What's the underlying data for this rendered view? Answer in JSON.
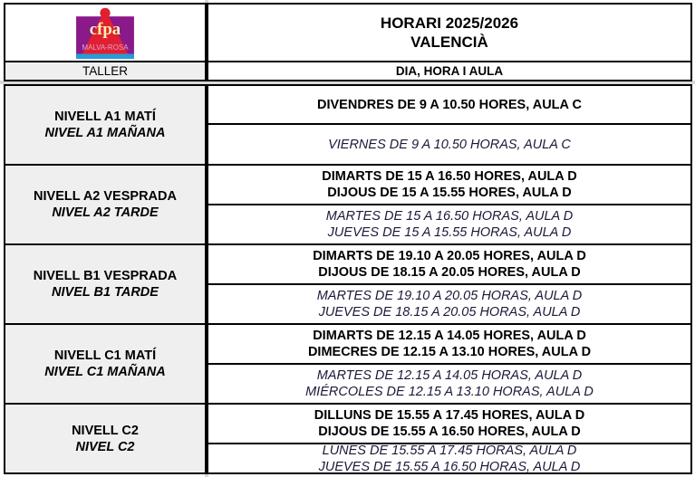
{
  "logo": {
    "text": "cfpa",
    "subtext": "MALVA-ROSA",
    "colors": {
      "purple": "#8a1a8a",
      "red": "#e02030",
      "wave": "#2a9ad8",
      "cream": "#fff0b0"
    }
  },
  "header": {
    "title_line1": "HORARI 2025/2026",
    "title_line2": "VALENCIÀ",
    "col_taller": "TALLER",
    "col_dia": "DIA, HORA I AULA"
  },
  "rows": [
    {
      "level_val": "NIVELL A1 MATÍ",
      "level_es": "NIVEL A1 MAÑANA",
      "val": [
        "DIVENDRES DE 9 A 10.50 HORES, AULA C"
      ],
      "es": [
        "VIERNES DE 9 A 10.50 HORAS, AULA C"
      ]
    },
    {
      "level_val": "NIVELL A2 VESPRADA",
      "level_es": "NIVEL A2 TARDE",
      "val": [
        "DIMARTS DE 15 A 16.50 HORES, AULA D",
        "DIJOUS DE 15 A 15.55 HORES, AULA D"
      ],
      "es": [
        "MARTES DE 15 A 16.50 HORAS, AULA D",
        "JUEVES DE 15 A 15.55 HORAS, AULA D"
      ]
    },
    {
      "level_val": "NIVELL B1 VESPRADA",
      "level_es": "NIVEL B1 TARDE",
      "val": [
        "DIMARTS DE 19.10 A 20.05 HORES, AULA D",
        "DIJOUS DE 18.15 A 20.05 HORES, AULA D"
      ],
      "es": [
        "MARTES DE 19.10 A 20.05 HORAS, AULA D",
        "JUEVES DE 18.15 A 20.05 HORAS, AULA D"
      ]
    },
    {
      "level_val": "NIVELL C1 MATÍ",
      "level_es": "NIVEL C1 MAÑANA",
      "val": [
        "DIMARTS DE 12.15 A 14.05 HORES, AULA D",
        "DIMECRES DE 12.15 A 13.10 HORES, AULA D"
      ],
      "es": [
        "MARTES DE 12.15 A 14.05 HORAS, AULA D",
        "MIÉRCOLES DE 12.15 A 13.10 HORAS, AULA D"
      ]
    },
    {
      "level_val": "NIVELL C2",
      "level_es": "NIVEL C2",
      "val": [
        "DILLUNS DE 15.55 A 17.45 HORES, AULA D",
        "DIJOUS DE 15.55 A 16.50 HORES, AULA D"
      ],
      "es": [
        "LUNES DE 15.55 A 17.45 HORAS, AULA D",
        "JUEVES DE 15.55 A 16.50 HORAS, AULA D"
      ]
    }
  ]
}
